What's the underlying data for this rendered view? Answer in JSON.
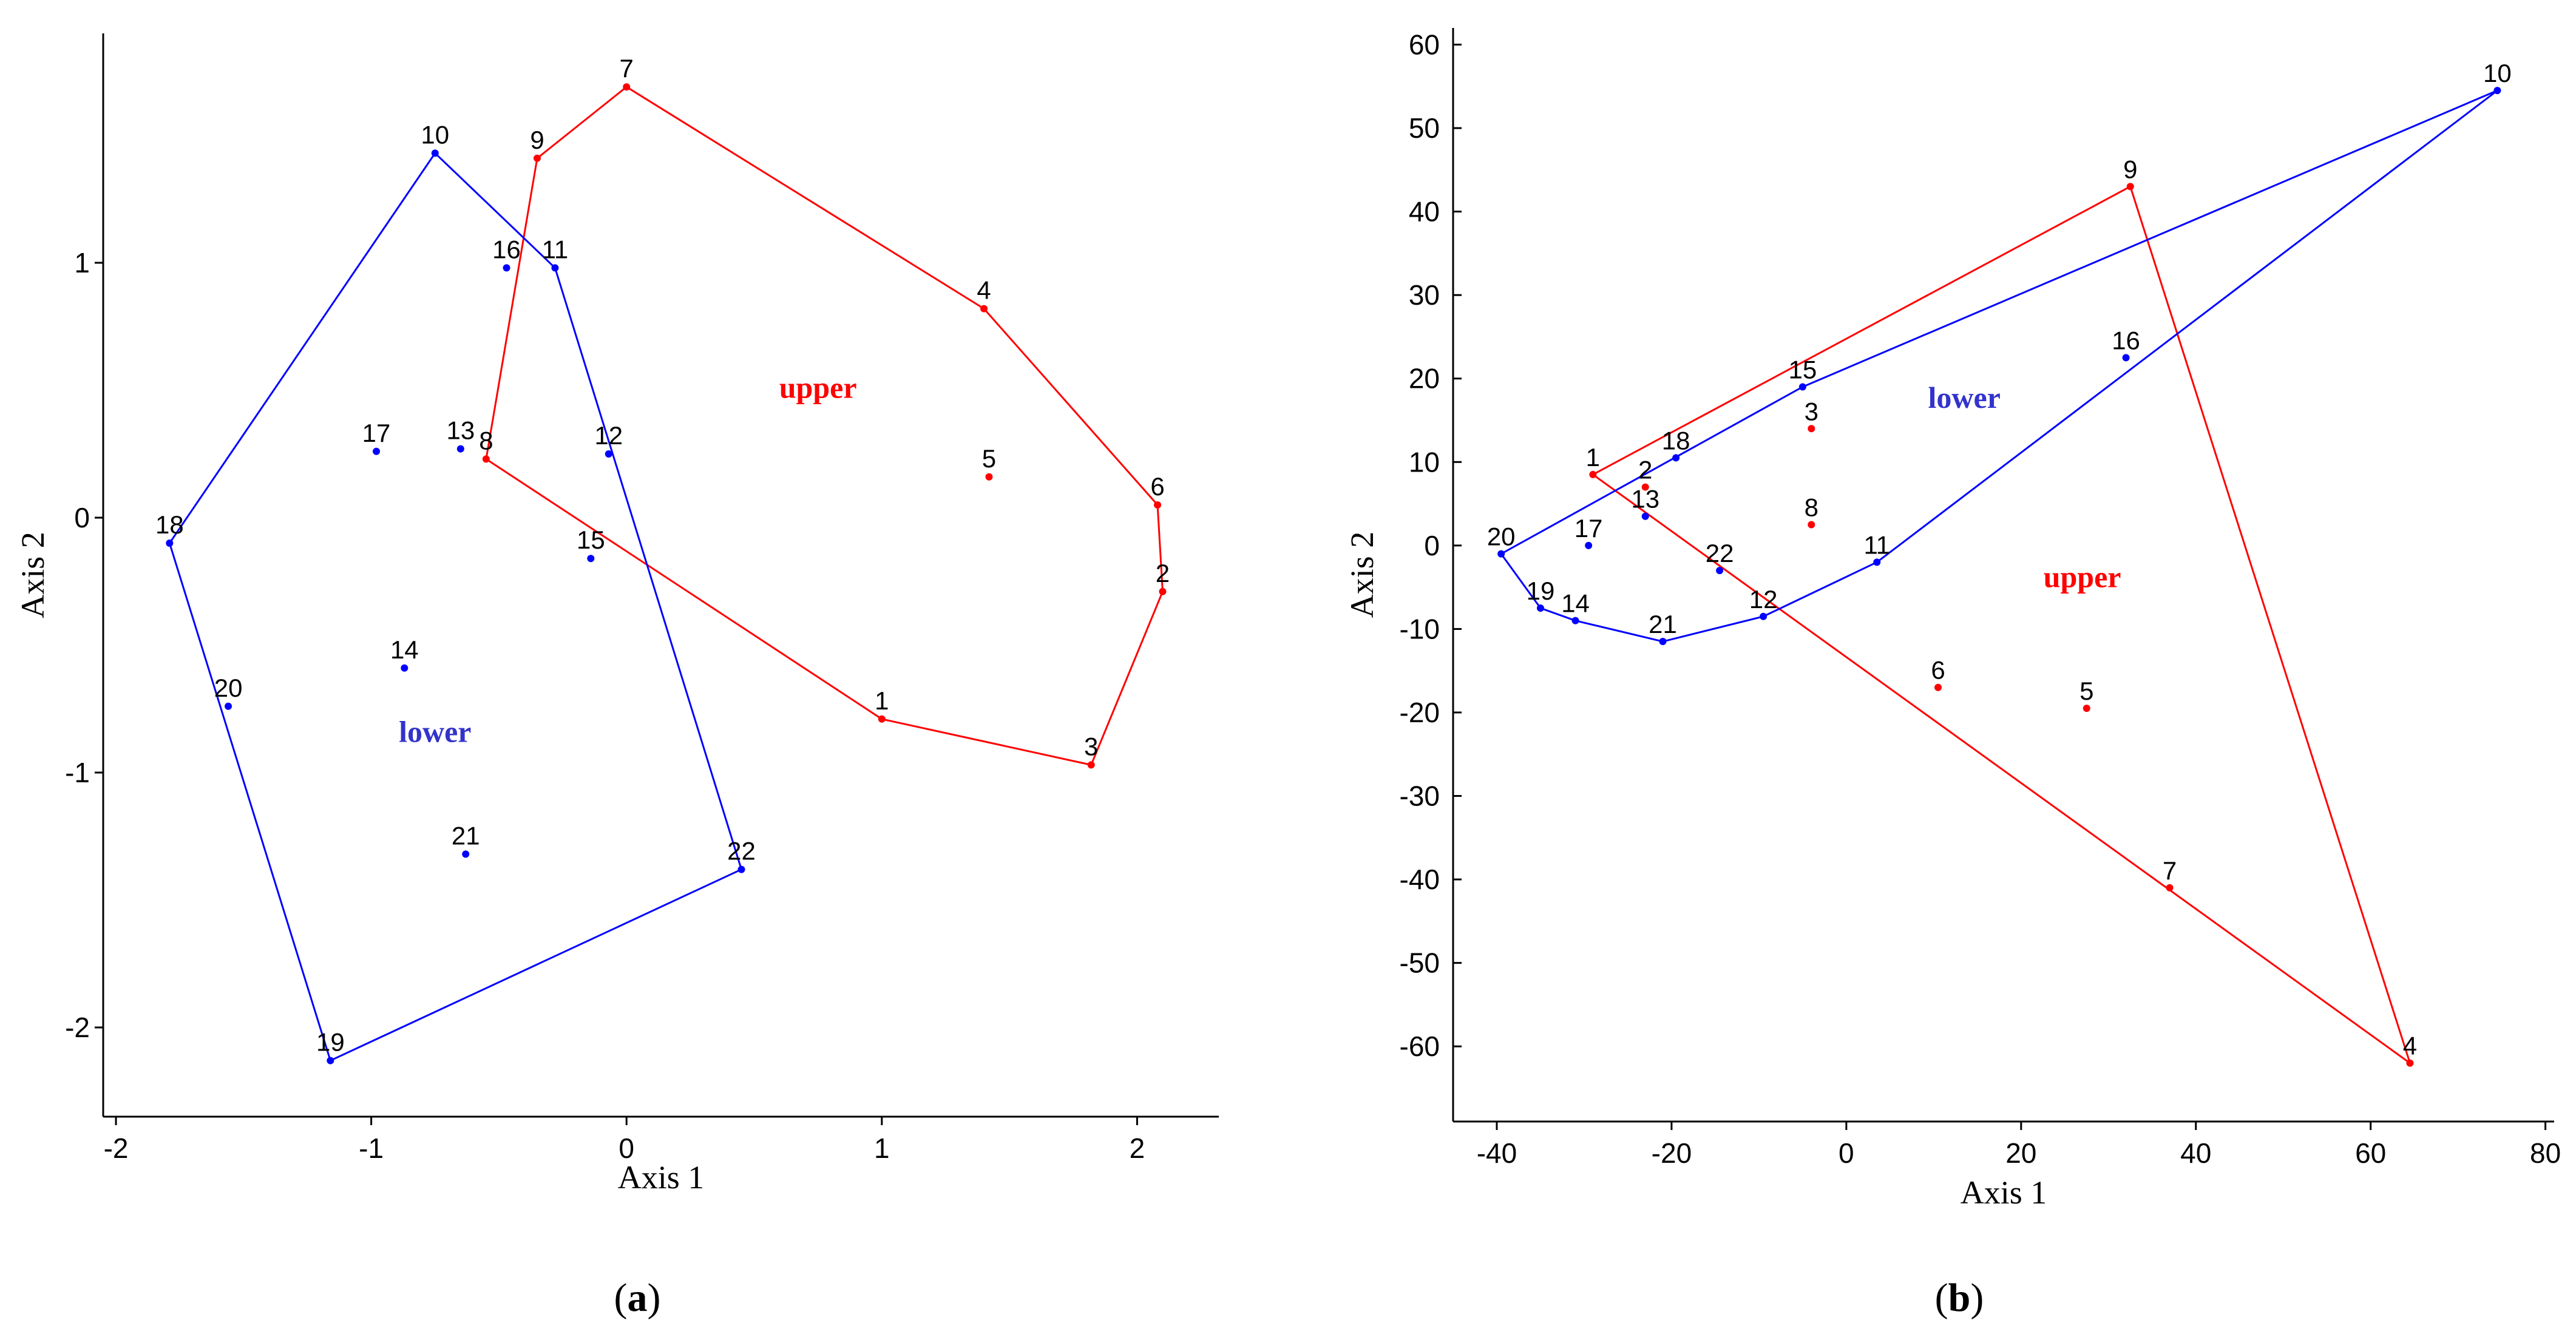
{
  "chart_data": [
    {
      "type": "scatter",
      "panel_label": "a",
      "xlabel": "Axis 1",
      "ylabel": "Axis 2",
      "xlim": [
        -2.05,
        2.32
      ],
      "ylim": [
        -2.35,
        1.9
      ],
      "xticks": [
        -2,
        -1,
        0,
        1,
        2
      ],
      "xtick_labels": [
        "-2",
        "-1",
        "0",
        "1",
        "2"
      ],
      "yticks": [
        -2,
        -1,
        0,
        1
      ],
      "ytick_labels": [
        "-2",
        "-1",
        "0",
        "1"
      ],
      "group_labels": [
        {
          "text": "upper",
          "x": 0.75,
          "y": 0.47,
          "color": "#ff0000"
        },
        {
          "text": "lower",
          "x": -0.75,
          "y": -0.88,
          "color": "#3333cc"
        }
      ],
      "series": [
        {
          "name": "upper",
          "color": "#ff0000",
          "points": [
            {
              "label": "1",
              "x": 1.0,
              "y": -0.79
            },
            {
              "label": "2",
              "x": 2.1,
              "y": -0.29
            },
            {
              "label": "3",
              "x": 1.82,
              "y": -0.97
            },
            {
              "label": "4",
              "x": 1.4,
              "y": 0.82
            },
            {
              "label": "5",
              "x": 1.42,
              "y": 0.16
            },
            {
              "label": "6",
              "x": 2.08,
              "y": 0.05
            },
            {
              "label": "7",
              "x": 0.0,
              "y": 1.69
            },
            {
              "label": "8",
              "x": -0.55,
              "y": 0.23
            },
            {
              "label": "9",
              "x": -0.35,
              "y": 1.41
            }
          ],
          "hull": [
            "7",
            "4",
            "6",
            "2",
            "3",
            "1",
            "8",
            "9",
            "7"
          ]
        },
        {
          "name": "lower",
          "color": "#0000ff",
          "points": [
            {
              "label": "10",
              "x": -0.75,
              "y": 1.43
            },
            {
              "label": "11",
              "x": -0.28,
              "y": 0.98
            },
            {
              "label": "12",
              "x": -0.07,
              "y": 0.25
            },
            {
              "label": "13",
              "x": -0.65,
              "y": 0.27
            },
            {
              "label": "14",
              "x": -0.87,
              "y": -0.59
            },
            {
              "label": "15",
              "x": -0.14,
              "y": -0.16
            },
            {
              "label": "16",
              "x": -0.47,
              "y": 0.98
            },
            {
              "label": "17",
              "x": -0.98,
              "y": 0.26
            },
            {
              "label": "18",
              "x": -1.79,
              "y": -0.1
            },
            {
              "label": "19",
              "x": -1.16,
              "y": -2.13
            },
            {
              "label": "20",
              "x": -1.56,
              "y": -0.74
            },
            {
              "label": "21",
              "x": -0.63,
              "y": -1.32
            },
            {
              "label": "22",
              "x": 0.45,
              "y": -1.38
            }
          ],
          "hull": [
            "10",
            "11",
            "22",
            "19",
            "18",
            "10"
          ]
        }
      ]
    },
    {
      "type": "scatter",
      "panel_label": "b",
      "xlabel": "Axis 1",
      "ylabel": "Axis 2",
      "xlim": [
        -45,
        81
      ],
      "ylim": [
        -69,
        62
      ],
      "xticks": [
        -40,
        -20,
        0,
        20,
        40,
        60,
        80
      ],
      "xtick_labels": [
        "-40",
        "-20",
        "0",
        "20",
        "40",
        "60",
        "80"
      ],
      "yticks": [
        60,
        50,
        40,
        30,
        20,
        10,
        0,
        -10,
        -20,
        -30,
        -40,
        -50,
        -60
      ],
      "ytick_labels": [
        "60",
        "50",
        "40",
        "30",
        "20",
        "10",
        "0",
        "-10",
        "-20",
        "-30",
        "-40",
        "-50",
        "-60"
      ],
      "group_labels": [
        {
          "text": "lower",
          "x": 13.5,
          "y": 16.5,
          "color": "#3333cc"
        },
        {
          "text": "upper",
          "x": 27,
          "y": -5,
          "color": "#ff0000"
        }
      ],
      "series": [
        {
          "name": "upper",
          "color": "#ff0000",
          "points": [
            {
              "label": "1",
              "x": -29,
              "y": 8.5
            },
            {
              "label": "2",
              "x": -23,
              "y": 7.0
            },
            {
              "label": "3",
              "x": -4,
              "y": 14.0
            },
            {
              "label": "4",
              "x": 64.5,
              "y": -62
            },
            {
              "label": "5",
              "x": 27.5,
              "y": -19.5
            },
            {
              "label": "6",
              "x": 10.5,
              "y": -17.0
            },
            {
              "label": "7",
              "x": 37,
              "y": -41
            },
            {
              "label": "8",
              "x": -4,
              "y": 2.5
            },
            {
              "label": "9",
              "x": 32.5,
              "y": 43
            }
          ],
          "hull": [
            "1",
            "9",
            "4",
            "1"
          ]
        },
        {
          "name": "lower",
          "color": "#0000ff",
          "points": [
            {
              "label": "10",
              "x": 74.5,
              "y": 54.5
            },
            {
              "label": "11",
              "x": 3.5,
              "y": -2.0
            },
            {
              "label": "12",
              "x": -9.5,
              "y": -8.5
            },
            {
              "label": "13",
              "x": -23,
              "y": 3.5
            },
            {
              "label": "14",
              "x": -31,
              "y": -9.0
            },
            {
              "label": "15",
              "x": -5,
              "y": 19.0
            },
            {
              "label": "16",
              "x": 32,
              "y": 22.5
            },
            {
              "label": "17",
              "x": -29.5,
              "y": 0
            },
            {
              "label": "18",
              "x": -19.5,
              "y": 10.5
            },
            {
              "label": "19",
              "x": -35,
              "y": -7.5
            },
            {
              "label": "20",
              "x": -39.5,
              "y": -1.0
            },
            {
              "label": "21",
              "x": -21,
              "y": -11.5
            },
            {
              "label": "22",
              "x": -14.5,
              "y": -3.0
            }
          ],
          "hull": [
            "10",
            "11",
            "12",
            "21",
            "14",
            "19",
            "20",
            "15",
            "10"
          ]
        }
      ]
    }
  ]
}
